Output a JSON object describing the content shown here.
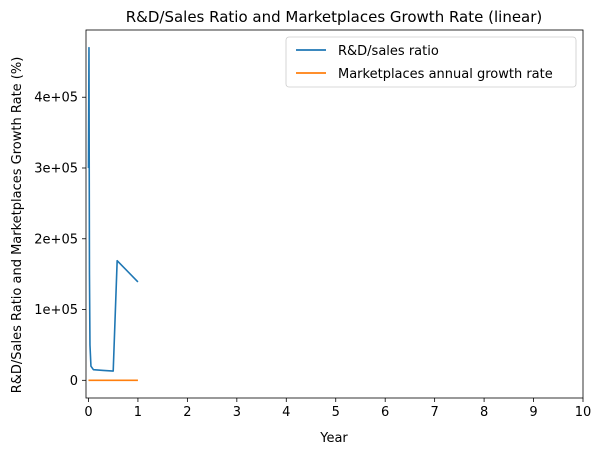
{
  "chart_data": {
    "type": "line",
    "title": "R&D/Sales Ratio and Marketplaces Growth Rate (linear)",
    "xlabel": "Year",
    "ylabel": "R&D/Sales Ratio and Marketplaces Growth Rate (%)",
    "xlim": [
      -0.05,
      10
    ],
    "ylim": [
      -25000,
      495000
    ],
    "xticks": [
      0,
      1,
      2,
      3,
      4,
      5,
      6,
      7,
      8,
      9,
      10
    ],
    "xtick_labels": [
      "0",
      "1",
      "2",
      "3",
      "4",
      "5",
      "6",
      "7",
      "8",
      "9",
      "10"
    ],
    "yticks": [
      0,
      100000,
      200000,
      300000,
      400000
    ],
    "ytick_labels": [
      "0",
      "1e+05",
      "2e+05",
      "3e+05",
      "4e+05"
    ],
    "legend_position": "top-right",
    "grid": false,
    "series": [
      {
        "name": "R&D/sales ratio",
        "color": "#1f77b4",
        "x": [
          0,
          0.01,
          0.02,
          0.03,
          0.05,
          0.1,
          0.3,
          0.5,
          0.58,
          1.0
        ],
        "y": [
          300000,
          470000,
          150000,
          50000,
          20000,
          15000,
          14000,
          13000,
          169000,
          139000
        ]
      },
      {
        "name": "Marketplaces annual growth rate",
        "color": "#ff7f0e",
        "x": [
          0,
          1
        ],
        "y": [
          0,
          0
        ]
      }
    ]
  }
}
